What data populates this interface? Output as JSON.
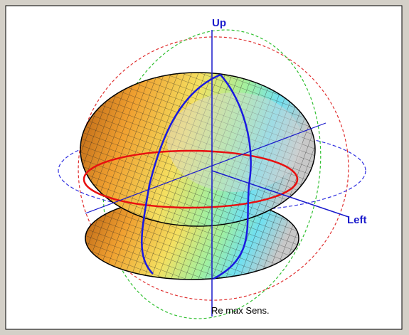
{
  "labels": {
    "up": "Up",
    "left": "Left",
    "caption": "Re max Sens."
  }
}
